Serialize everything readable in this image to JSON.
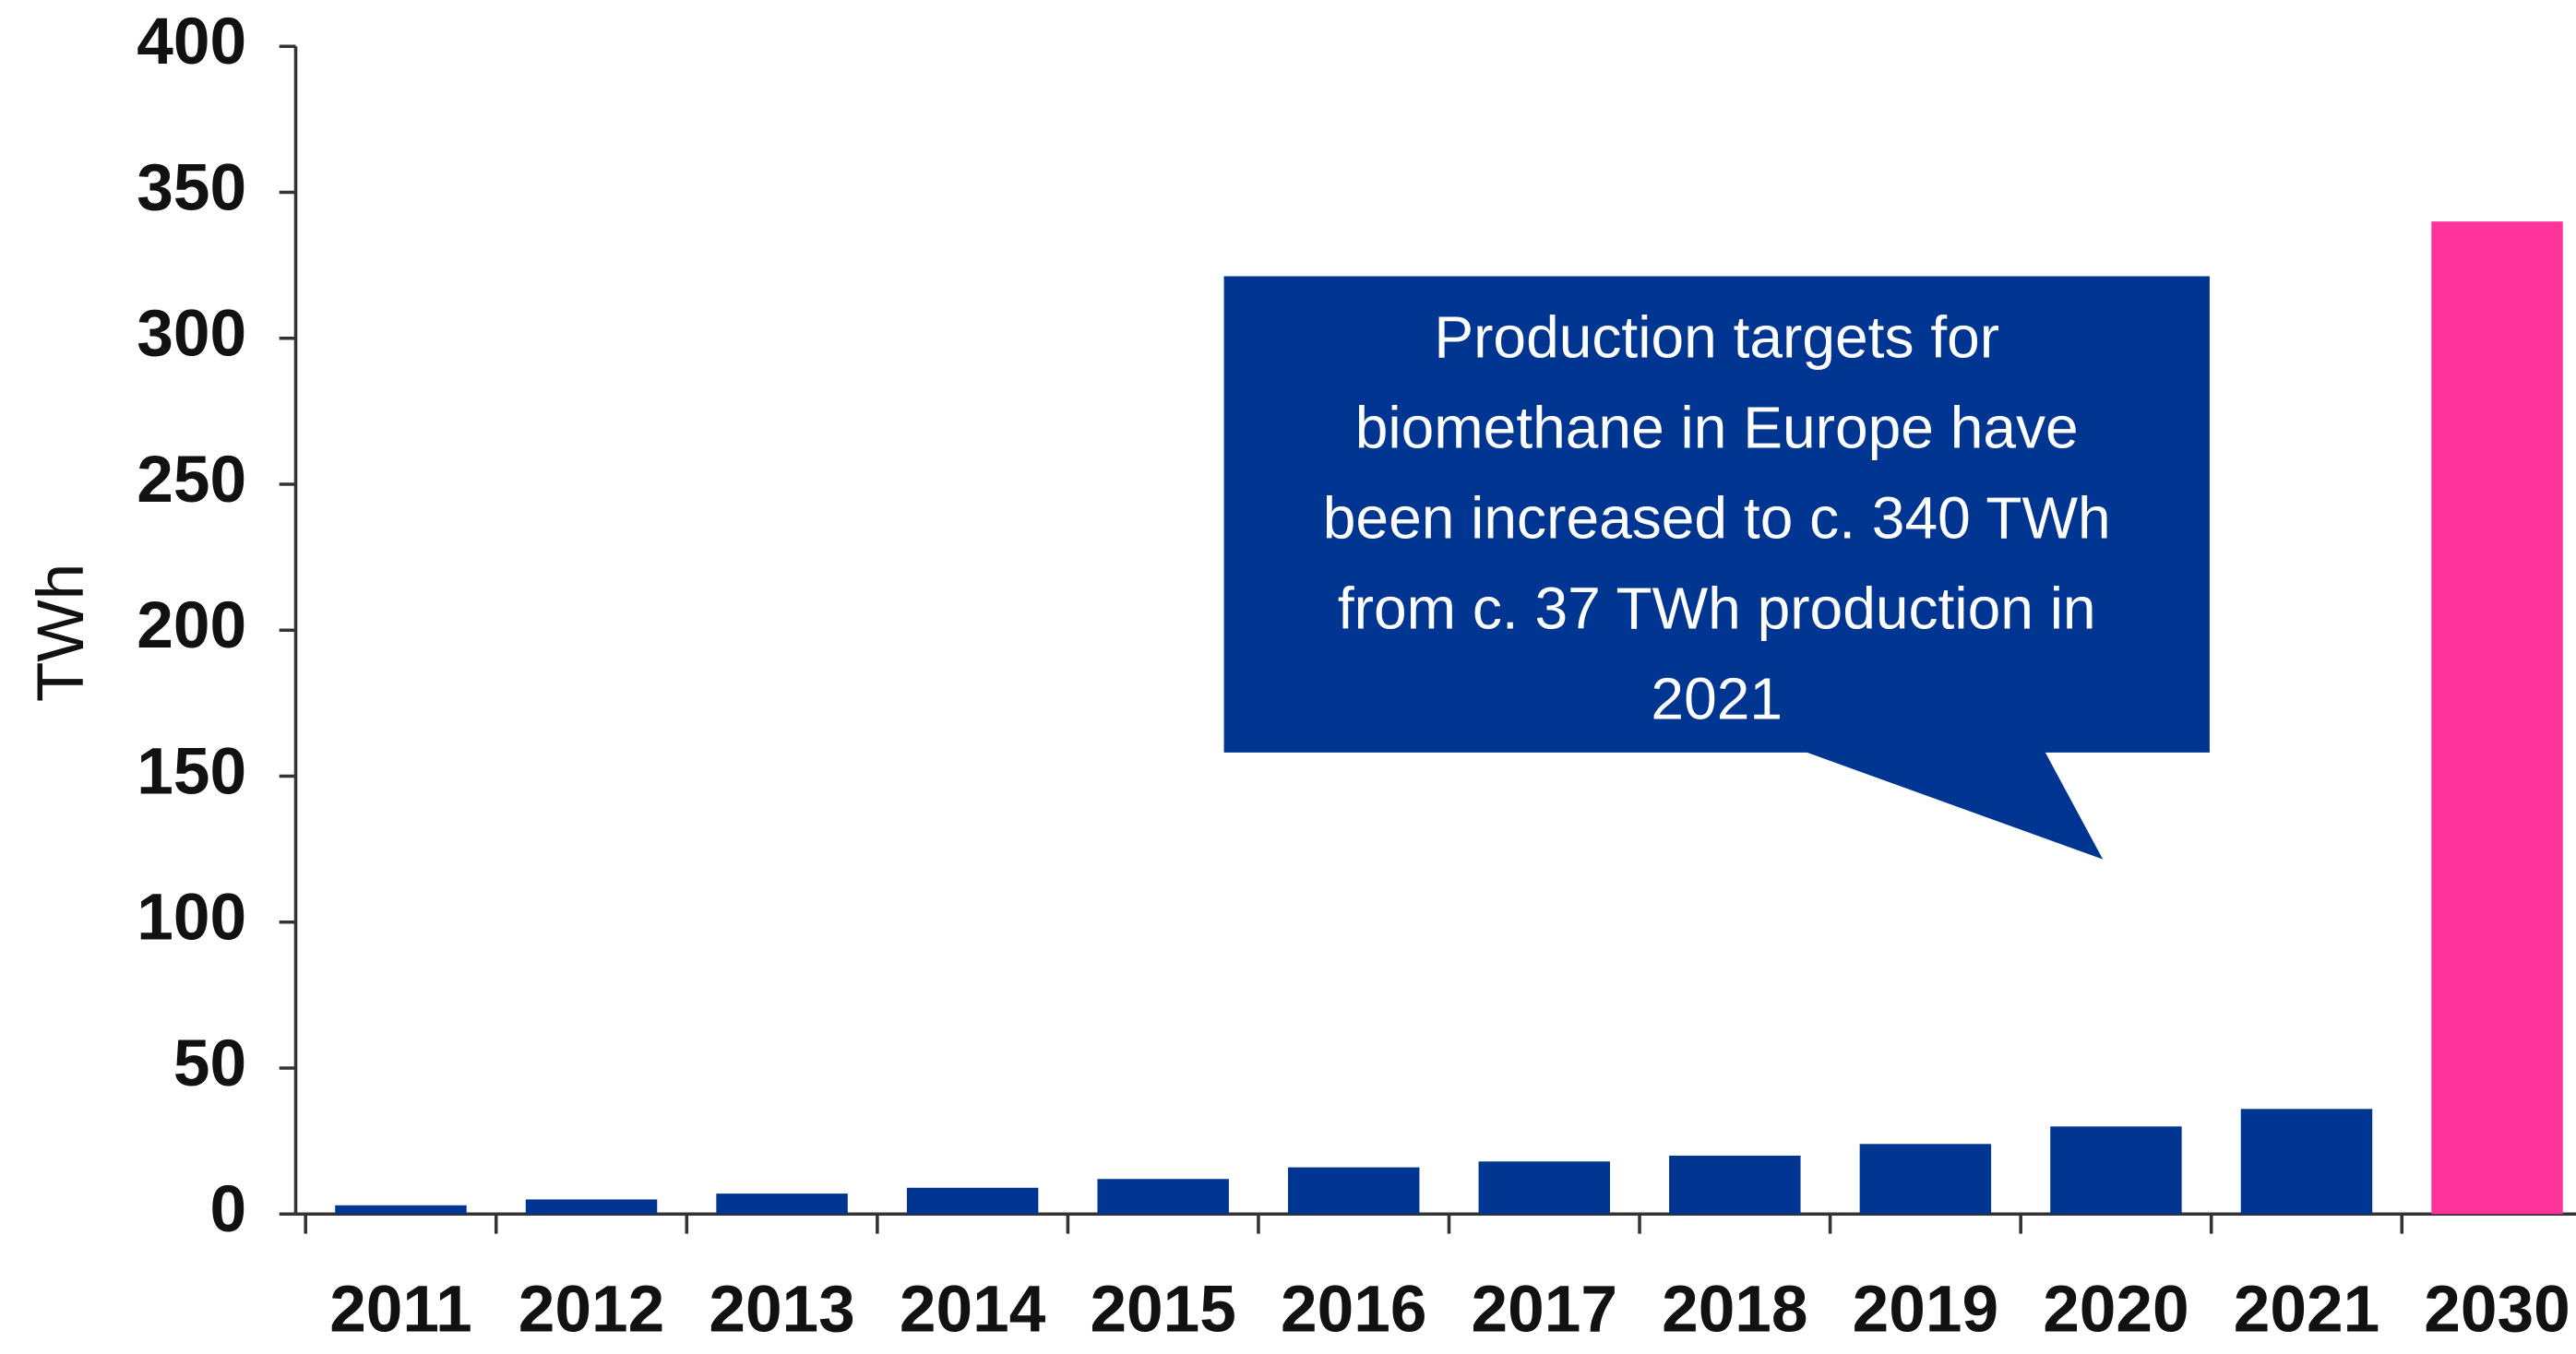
{
  "chart_data": {
    "type": "bar",
    "y_label": "TWh",
    "categories": [
      "2011",
      "2012",
      "2013",
      "2014",
      "2015",
      "2016",
      "2017",
      "2018",
      "2019",
      "2020",
      "2021",
      "2030"
    ],
    "values": [
      3,
      5,
      7,
      9,
      12,
      16,
      18,
      20,
      24,
      30,
      36,
      340
    ],
    "colors": [
      "#003591",
      "#003591",
      "#003591",
      "#003591",
      "#003591",
      "#003591",
      "#003591",
      "#003591",
      "#003591",
      "#003591",
      "#003591",
      "#ff3399"
    ],
    "ylim": [
      0,
      400
    ],
    "yticks": [
      0,
      50,
      100,
      150,
      200,
      250,
      300,
      350,
      400
    ],
    "grid": false,
    "annotation": [
      "Production targets for",
      "biomethane in Europe have",
      "been increased to c. 340 TWh",
      "from c. 37 TWh production in",
      "2021"
    ],
    "annotation_color": "#003591"
  }
}
